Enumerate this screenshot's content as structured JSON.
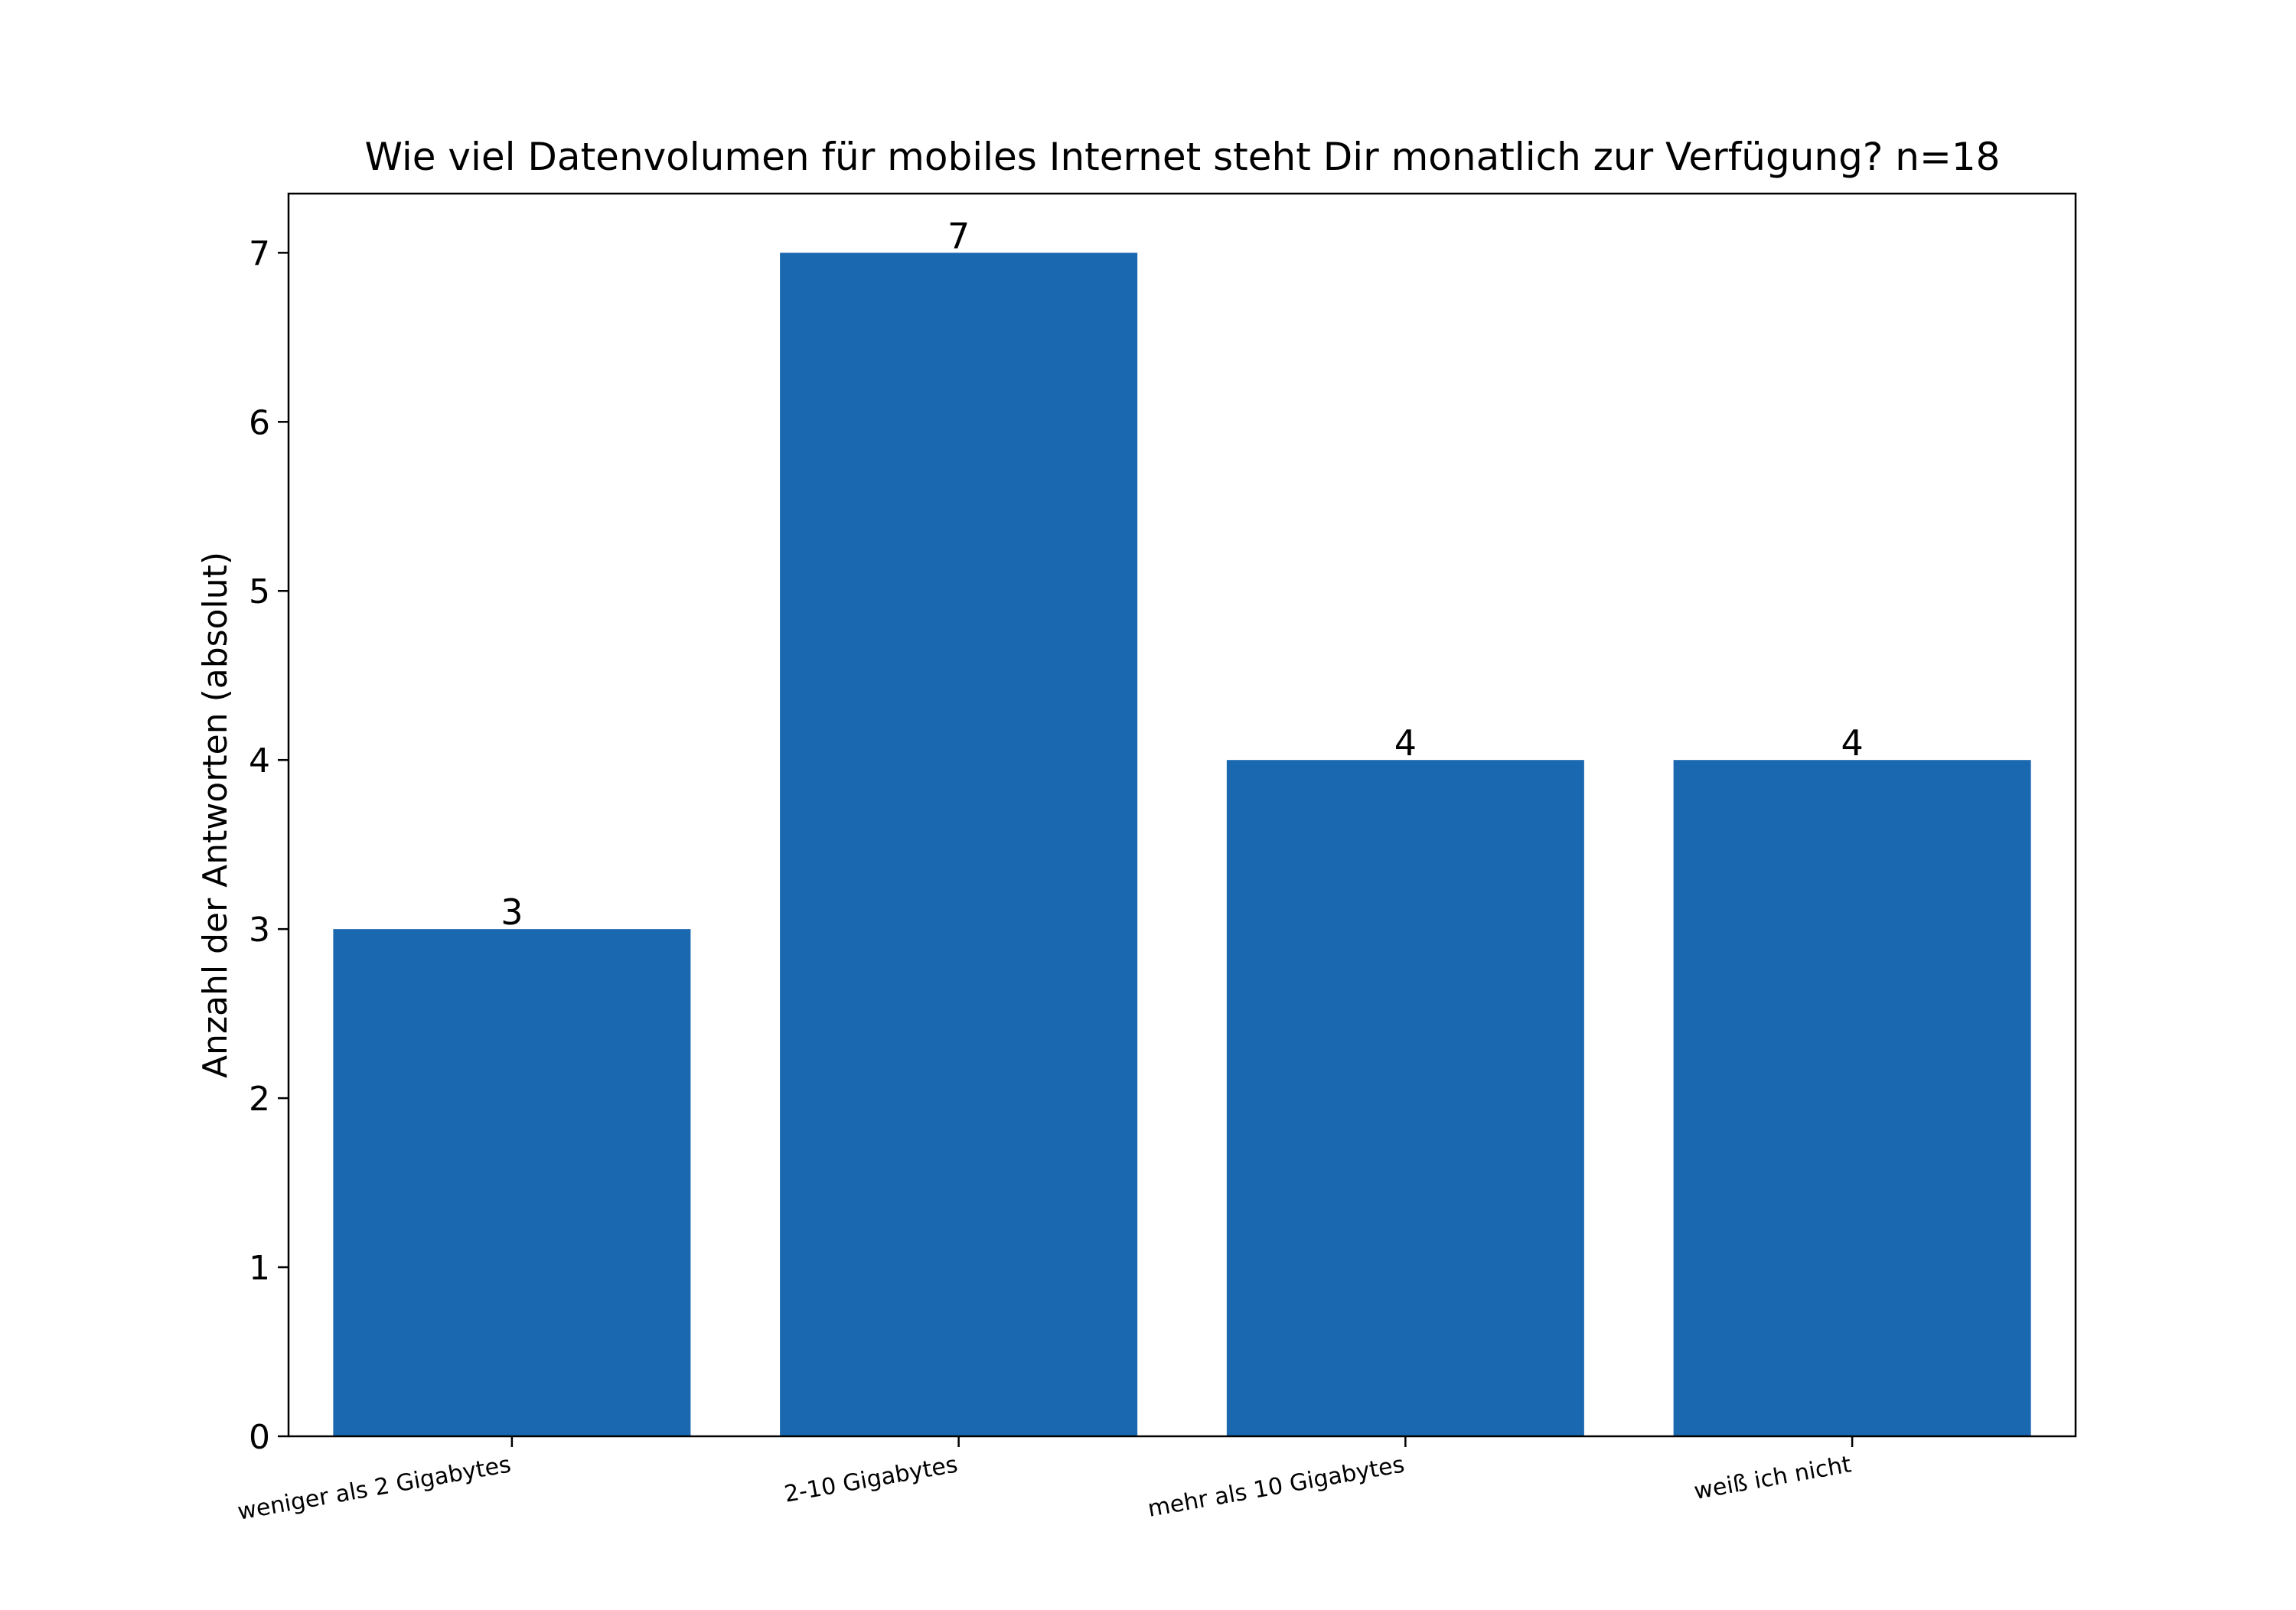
{
  "chart_data": {
    "type": "bar",
    "title": "Wie viel Datenvolumen für mobiles Internet steht Dir monatlich zur Verfügung? n=18",
    "xlabel": "",
    "ylabel": "Anzahl der Antworten (absolut)",
    "categories": [
      "weniger als 2 Gigabytes",
      "2-10 Gigabytes",
      "mehr als 10 Gigabytes",
      "weiß ich nicht"
    ],
    "values": [
      3,
      7,
      4,
      4
    ],
    "data_labels": [
      "3",
      "7",
      "4",
      "4"
    ],
    "ylim": [
      0,
      7.35
    ],
    "yticks": [
      0,
      1,
      2,
      3,
      4,
      5,
      6,
      7
    ],
    "ytick_labels": [
      "0",
      "1",
      "2",
      "3",
      "4",
      "5",
      "6",
      "7"
    ],
    "grid": false,
    "legend": "none",
    "bar_color": "#1a68b0"
  }
}
